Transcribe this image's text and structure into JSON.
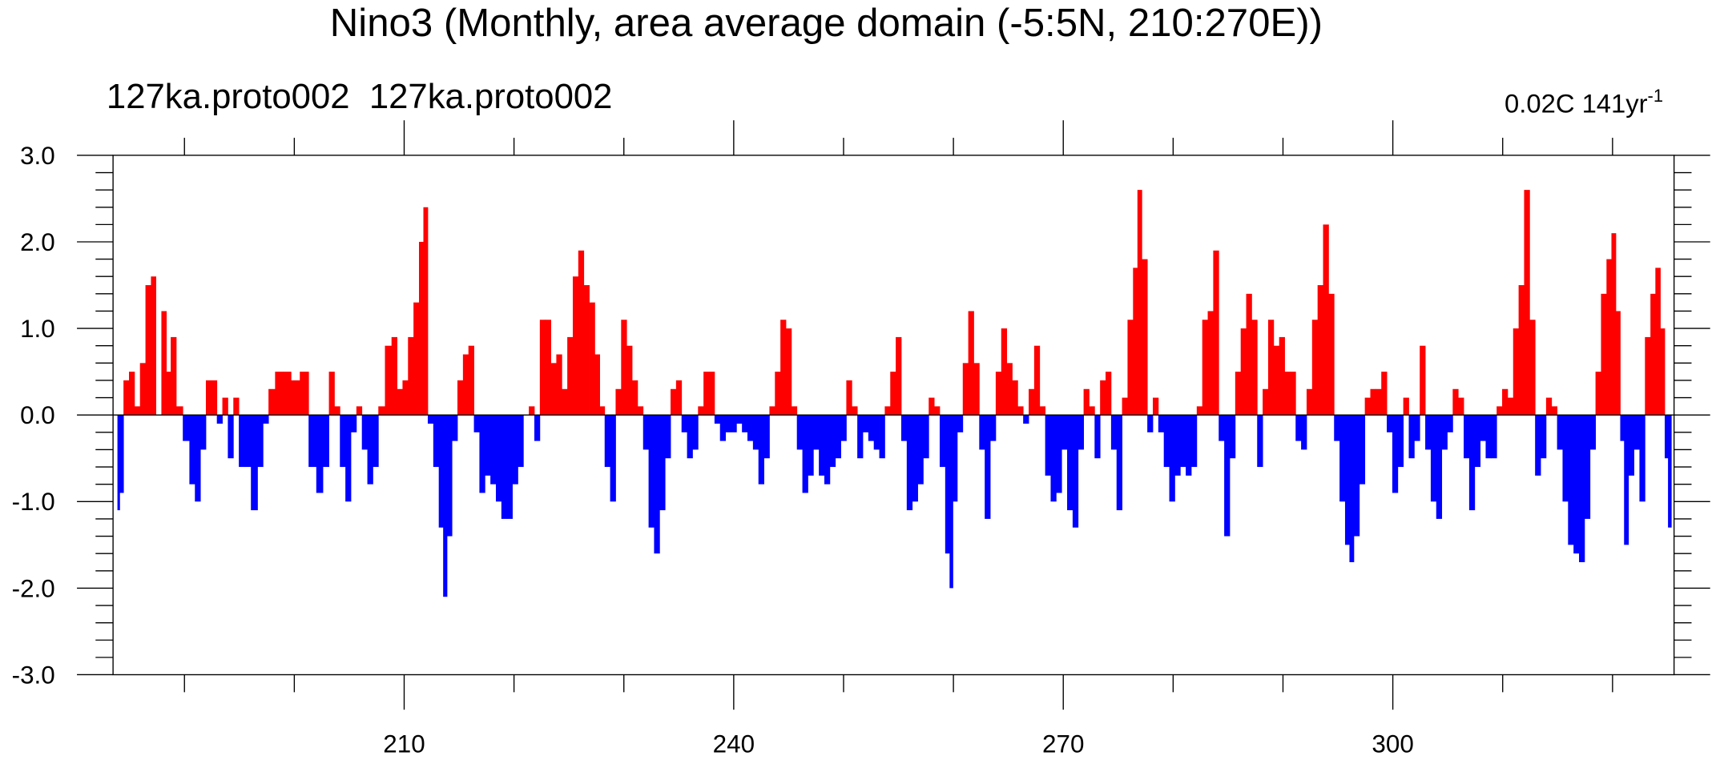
{
  "chart_data": {
    "type": "bar",
    "title": "Nino3 (Monthly, area average domain (-5:5N, 210:270E))",
    "subtitle_left": "127ka.proto002  127ka.proto002",
    "subtitle_right": "0.02C 141yr",
    "subtitle_right_sup": "-1",
    "positive_color": "#ff0000",
    "negative_color": "#0000ff",
    "xlim": [
      183.5,
      325.6
    ],
    "ylim": [
      -3,
      3
    ],
    "xticks": [
      210,
      240,
      270,
      300
    ],
    "xticks_minor": [
      190,
      200,
      220,
      230,
      250,
      260,
      280,
      290,
      310,
      320
    ],
    "yticks": [
      {
        "value": 3,
        "label": "3.0"
      },
      {
        "value": 2,
        "label": "2.0"
      },
      {
        "value": 1,
        "label": "1.0"
      },
      {
        "value": 0,
        "label": "0.0"
      },
      {
        "value": -1,
        "label": "-1.0"
      },
      {
        "value": -2,
        "label": "-2.0"
      },
      {
        "value": -3,
        "label": "-3.0"
      }
    ],
    "yticks_minor": [
      2.8,
      2.6,
      2.4,
      2.2,
      1.8,
      1.6,
      1.4,
      1.2,
      0.8,
      0.6,
      0.4,
      0.2,
      -0.2,
      -0.4,
      -0.6,
      -0.8,
      -1.2,
      -1.4,
      -1.6,
      -1.8,
      -2.2,
      -2.4,
      -2.6,
      -2.8
    ],
    "x": [
      184.0,
      184.2,
      184.7,
      185.2,
      185.7,
      186.2,
      186.7,
      187.2,
      187.6,
      188.2,
      188.5,
      189.0,
      189.5,
      190.2,
      190.7,
      191.2,
      191.7,
      192.2,
      192.7,
      193.2,
      193.7,
      194.2,
      194.7,
      195.2,
      195.7,
      196.4,
      196.9,
      197.4,
      197.9,
      198.6,
      199.3,
      200.1,
      200.9,
      201.7,
      202.3,
      202.9,
      203.4,
      203.9,
      204.4,
      204.9,
      205.4,
      205.9,
      206.4,
      206.9,
      207.4,
      207.9,
      208.6,
      209.1,
      209.6,
      210.1,
      210.6,
      211.1,
      211.6,
      211.9,
      212.4,
      212.9,
      213.4,
      213.7,
      214.1,
      214.6,
      215.1,
      215.6,
      216.1,
      216.6,
      217.1,
      217.6,
      218.1,
      218.6,
      219.1,
      219.6,
      220.1,
      220.6,
      221.1,
      221.6,
      222.1,
      222.6,
      223.1,
      223.6,
      224.1,
      224.6,
      225.1,
      225.6,
      226.1,
      226.6,
      227.1,
      227.6,
      228.0,
      228.5,
      229.0,
      229.5,
      230.0,
      230.5,
      231.0,
      231.5,
      232.0,
      232.5,
      233.0,
      233.5,
      234.0,
      234.5,
      235.0,
      235.5,
      236.0,
      236.5,
      237.0,
      237.5,
      238.0,
      238.5,
      239.0,
      239.5,
      240.0,
      240.5,
      241.0,
      241.5,
      242.0,
      242.5,
      243.0,
      243.5,
      244.0,
      244.5,
      245.0,
      245.5,
      246.0,
      246.5,
      247.0,
      247.5,
      248.0,
      248.5,
      249.0,
      249.5,
      250.0,
      250.5,
      251.0,
      251.5,
      252.0,
      252.5,
      253.0,
      253.5,
      254.0,
      254.5,
      255.0,
      255.5,
      256.0,
      256.5,
      257.0,
      257.5,
      258.0,
      258.5,
      259.0,
      259.5,
      259.8,
      260.1,
      260.6,
      261.1,
      261.6,
      262.1,
      262.6,
      263.1,
      263.6,
      264.1,
      264.6,
      265.1,
      265.6,
      266.1,
      266.6,
      267.1,
      267.6,
      268.1,
      268.6,
      269.1,
      269.6,
      270.1,
      270.6,
      271.1,
      271.6,
      272.1,
      272.6,
      273.1,
      273.6,
      274.1,
      274.6,
      275.1,
      275.6,
      276.1,
      276.6,
      276.9,
      277.4,
      277.9,
      278.4,
      278.9,
      279.4,
      279.9,
      280.4,
      280.9,
      281.4,
      281.9,
      282.4,
      282.9,
      283.4,
      283.9,
      284.4,
      284.9,
      285.4,
      285.9,
      286.4,
      286.9,
      287.4,
      287.9,
      288.4,
      288.9,
      289.4,
      289.9,
      290.4,
      290.9,
      291.4,
      291.9,
      292.4,
      292.9,
      293.4,
      293.9,
      294.4,
      294.9,
      295.4,
      295.9,
      296.2,
      296.7,
      297.2,
      297.7,
      298.2,
      298.7,
      299.2,
      299.7,
      300.2,
      300.7,
      301.2,
      301.7,
      302.2,
      302.7,
      303.2,
      303.7,
      304.2,
      304.7,
      305.2,
      305.7,
      306.2,
      306.7,
      307.2,
      307.7,
      308.2,
      308.7,
      309.2,
      309.7,
      310.2,
      310.7,
      311.2,
      311.7,
      312.2,
      312.7,
      313.2,
      313.7,
      314.2,
      314.7,
      315.2,
      315.7,
      316.2,
      316.7,
      317.2,
      317.7,
      318.2,
      318.7,
      319.2,
      319.7,
      320.1,
      320.5,
      320.9,
      321.2,
      321.7,
      322.2,
      322.7,
      323.2,
      323.7,
      324.1,
      324.6,
      324.9,
      325.2
    ],
    "values": [
      -1.1,
      -0.9,
      0.4,
      0.5,
      0.1,
      0.6,
      1.5,
      1.6,
      0.0,
      1.2,
      0.5,
      0.9,
      0.1,
      -0.3,
      -0.8,
      -1.0,
      -0.4,
      0.4,
      0.4,
      -0.1,
      0.2,
      -0.5,
      0.2,
      -0.6,
      -0.6,
      -1.1,
      -0.6,
      -0.1,
      0.3,
      0.5,
      0.5,
      0.4,
      0.5,
      -0.6,
      -0.9,
      -0.6,
      0.5,
      0.1,
      -0.6,
      -1.0,
      -0.2,
      0.1,
      -0.4,
      -0.8,
      -0.6,
      0.1,
      0.8,
      0.9,
      0.3,
      0.4,
      0.9,
      1.3,
      2.0,
      2.4,
      -0.1,
      -0.6,
      -1.3,
      -2.1,
      -1.4,
      -0.3,
      0.4,
      0.7,
      0.8,
      -0.2,
      -0.9,
      -0.7,
      -0.8,
      -1.0,
      -1.2,
      -1.2,
      -0.8,
      -0.6,
      0.0,
      0.1,
      -0.3,
      1.1,
      1.1,
      0.6,
      0.7,
      0.3,
      0.9,
      1.6,
      1.9,
      1.5,
      1.3,
      0.7,
      0.1,
      -0.6,
      -1.0,
      0.3,
      1.1,
      0.8,
      0.4,
      0.1,
      -0.4,
      -1.3,
      -1.6,
      -1.1,
      -0.5,
      0.3,
      0.4,
      -0.2,
      -0.5,
      -0.4,
      0.1,
      0.5,
      0.5,
      -0.1,
      -0.3,
      -0.2,
      -0.2,
      -0.1,
      -0.2,
      -0.3,
      -0.4,
      -0.8,
      -0.5,
      0.1,
      0.5,
      1.1,
      1.0,
      0.1,
      -0.4,
      -0.9,
      -0.7,
      -0.4,
      -0.7,
      -0.8,
      -0.6,
      -0.5,
      -0.3,
      0.4,
      0.1,
      -0.5,
      -0.2,
      -0.3,
      -0.4,
      -0.5,
      0.1,
      0.5,
      0.9,
      -0.3,
      -1.1,
      -1.0,
      -0.8,
      -0.5,
      0.2,
      0.1,
      -0.6,
      -1.6,
      -2.0,
      -1.0,
      -0.2,
      0.6,
      1.2,
      0.6,
      -0.4,
      -1.2,
      -0.3,
      0.5,
      1.0,
      0.6,
      0.4,
      0.1,
      -0.1,
      0.3,
      0.8,
      0.1,
      -0.7,
      -1.0,
      -0.9,
      -0.4,
      -1.1,
      -1.3,
      -0.4,
      0.3,
      0.1,
      -0.5,
      0.4,
      0.5,
      -0.4,
      -1.1,
      0.2,
      1.1,
      1.7,
      2.6,
      1.8,
      -0.2,
      0.2,
      -0.2,
      -0.6,
      -1.0,
      -0.7,
      -0.6,
      -0.7,
      -0.6,
      0.1,
      1.1,
      1.2,
      1.9,
      -0.3,
      -1.4,
      -0.5,
      0.5,
      1.0,
      1.4,
      1.1,
      -0.6,
      0.3,
      1.1,
      0.8,
      0.9,
      0.5,
      0.5,
      -0.3,
      -0.4,
      0.3,
      1.1,
      1.5,
      2.2,
      1.4,
      -0.3,
      -1.0,
      -1.5,
      -1.7,
      -1.4,
      -0.8,
      0.2,
      0.3,
      0.3,
      0.5,
      -0.2,
      -0.9,
      -0.6,
      0.2,
      -0.5,
      -0.3,
      0.8,
      -0.4,
      -1.0,
      -1.2,
      -0.4,
      -0.2,
      0.3,
      0.2,
      -0.5,
      -1.1,
      -0.6,
      -0.3,
      -0.5,
      -0.5,
      0.1,
      0.3,
      0.2,
      1.0,
      1.5,
      2.6,
      1.1,
      -0.7,
      -0.5,
      0.2,
      0.1,
      -0.4,
      -1.0,
      -1.5,
      -1.6,
      -1.7,
      -1.2,
      -0.4,
      0.5,
      1.4,
      1.8,
      2.1,
      1.2,
      -0.3,
      -1.5,
      -0.7,
      -0.4,
      -1.0,
      0.9,
      1.4,
      1.7,
      1.0,
      -0.5,
      -1.3
    ]
  }
}
